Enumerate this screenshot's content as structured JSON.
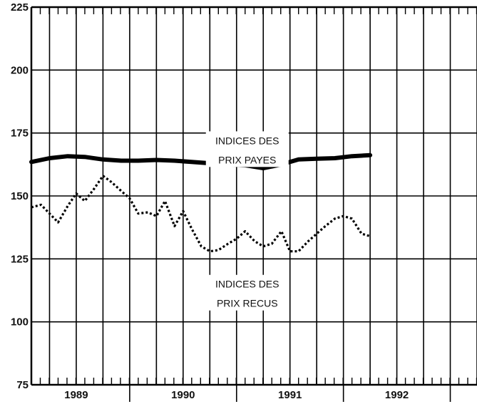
{
  "chart_data": {
    "type": "line",
    "title": "",
    "xlabel": "",
    "ylabel": "",
    "ylim": [
      75,
      225
    ],
    "yticks": [
      75,
      100,
      125,
      150,
      175,
      200,
      225
    ],
    "xlim": [
      1988.58,
      1992.75
    ],
    "year_labels": [
      {
        "label": "1989",
        "x": 1989.0
      },
      {
        "label": "1990",
        "x": 1990.0
      },
      {
        "label": "1991",
        "x": 1991.0
      },
      {
        "label": "1992",
        "x": 1992.0
      }
    ],
    "grid": true,
    "annotations": [
      {
        "lines": [
          "INDICES DES",
          "PRIX PAYES"
        ],
        "x": 1990.6,
        "y": 170
      },
      {
        "lines": [
          "INDICES DES",
          "PRIX RECUS"
        ],
        "x": 1990.6,
        "y": 113
      }
    ],
    "series": [
      {
        "style": "solid",
        "color": "#000000",
        "x": [
          1988.58,
          1988.75,
          1988.92,
          1989.08,
          1989.25,
          1989.42,
          1989.58,
          1989.75,
          1989.92,
          1990.08,
          1990.25,
          1990.42,
          1990.58,
          1990.75,
          1990.92,
          1991.08,
          1991.25,
          1991.42,
          1991.58,
          1991.75
        ],
        "values": [
          163.5,
          165.0,
          165.8,
          165.5,
          164.5,
          164.0,
          164.0,
          164.3,
          164.0,
          163.5,
          163.0,
          162.5,
          162.2,
          161.0,
          162.5,
          164.5,
          164.8,
          165.0,
          165.8,
          166.2
        ]
      },
      {
        "style": "dotted",
        "color": "#000000",
        "x": [
          1988.58,
          1988.67,
          1988.75,
          1988.83,
          1988.92,
          1989.0,
          1989.08,
          1989.17,
          1989.25,
          1989.33,
          1989.42,
          1989.5,
          1989.58,
          1989.67,
          1989.75,
          1989.83,
          1989.92,
          1990.0,
          1990.08,
          1990.17,
          1990.25,
          1990.33,
          1990.42,
          1990.5,
          1990.58,
          1990.67,
          1990.75,
          1990.83,
          1990.92,
          1991.0,
          1991.08,
          1991.17,
          1991.25,
          1991.33,
          1991.42,
          1991.5,
          1991.58,
          1991.67,
          1991.75
        ],
        "values": [
          145.5,
          146.5,
          143.0,
          139.5,
          146.0,
          151.0,
          148.0,
          153.0,
          158.0,
          155.5,
          152.0,
          149.0,
          143.0,
          143.5,
          142.0,
          148.0,
          138.0,
          144.0,
          137.0,
          130.0,
          128.0,
          128.5,
          131.0,
          133.0,
          136.0,
          132.0,
          130.0,
          131.0,
          136.0,
          128.0,
          128.0,
          132.0,
          135.0,
          138.0,
          141.0,
          142.0,
          141.0,
          135.0,
          134.0
        ]
      }
    ]
  }
}
